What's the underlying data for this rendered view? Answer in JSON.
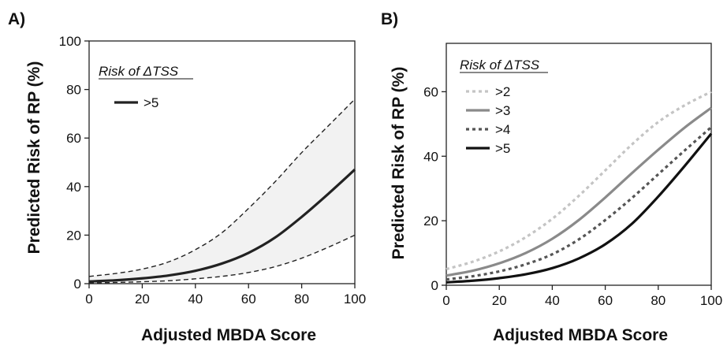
{
  "chart_data": [
    {
      "panel": "A)",
      "type": "line",
      "xlabel": "Adjusted MBDA Score",
      "ylabel": "Predicted Risk of RP (%)",
      "xlim": [
        0,
        100
      ],
      "ylim": [
        0,
        100
      ],
      "xticks": [
        0,
        20,
        40,
        60,
        80,
        100
      ],
      "yticks": [
        0,
        20,
        40,
        60,
        80,
        100
      ],
      "grid": false,
      "legend_title": "Risk of ΔTSS",
      "legend_position": "top-left",
      "x": [
        0,
        10,
        20,
        30,
        40,
        50,
        60,
        70,
        80,
        90,
        100
      ],
      "series": [
        {
          "name": ">5",
          "style": "solid",
          "color": "#222222",
          "values": [
            0.9,
            1.4,
            2.2,
            3.4,
            5.3,
            8.3,
            12.7,
            19.0,
            27.5,
            37.0,
            47.0
          ]
        }
      ],
      "confidence_band": {
        "style": "dashed",
        "fill": "#f2f2f2",
        "lower": [
          0.3,
          0.5,
          0.8,
          1.2,
          2.0,
          3.0,
          4.6,
          7.0,
          10.5,
          15.0,
          20.0
        ],
        "upper": [
          3.0,
          4.2,
          6.0,
          9.0,
          14.0,
          21.0,
          31.0,
          42.0,
          54.0,
          65.0,
          76.0
        ]
      }
    },
    {
      "panel": "B)",
      "type": "line",
      "xlabel": "Adjusted MBDA Score",
      "ylabel": "Predicted Risk of RP (%)",
      "xlim": [
        0,
        100
      ],
      "ylim": [
        0,
        75
      ],
      "xticks": [
        0,
        20,
        40,
        60,
        80,
        100
      ],
      "yticks": [
        0,
        20,
        40,
        60
      ],
      "grid": false,
      "legend_title": "Risk of ΔTSS",
      "legend_position": "top-left",
      "x": [
        0,
        10,
        20,
        30,
        40,
        50,
        60,
        70,
        80,
        90,
        100
      ],
      "series": [
        {
          "name": ">2",
          "style": "dotted",
          "color": "#c4c4c4",
          "values": [
            5.0,
            7.3,
            10.5,
            14.9,
            20.6,
            27.7,
            35.6,
            43.6,
            50.6,
            55.8,
            60.0
          ]
        },
        {
          "name": ">3",
          "style": "solid",
          "color": "#8a8a8a",
          "values": [
            3.0,
            4.5,
            6.8,
            10.0,
            14.4,
            20.2,
            27.2,
            34.7,
            42.0,
            48.9,
            55.0
          ]
        },
        {
          "name": ">4",
          "style": "dotted",
          "color": "#555555",
          "values": [
            1.8,
            2.8,
            4.3,
            6.5,
            9.6,
            14.2,
            20.2,
            27.0,
            34.4,
            41.8,
            49.0
          ]
        },
        {
          "name": ">5",
          "style": "solid",
          "color": "#111111",
          "values": [
            0.9,
            1.4,
            2.2,
            3.4,
            5.3,
            8.3,
            12.7,
            19.0,
            27.5,
            37.0,
            47.0
          ]
        }
      ]
    }
  ]
}
